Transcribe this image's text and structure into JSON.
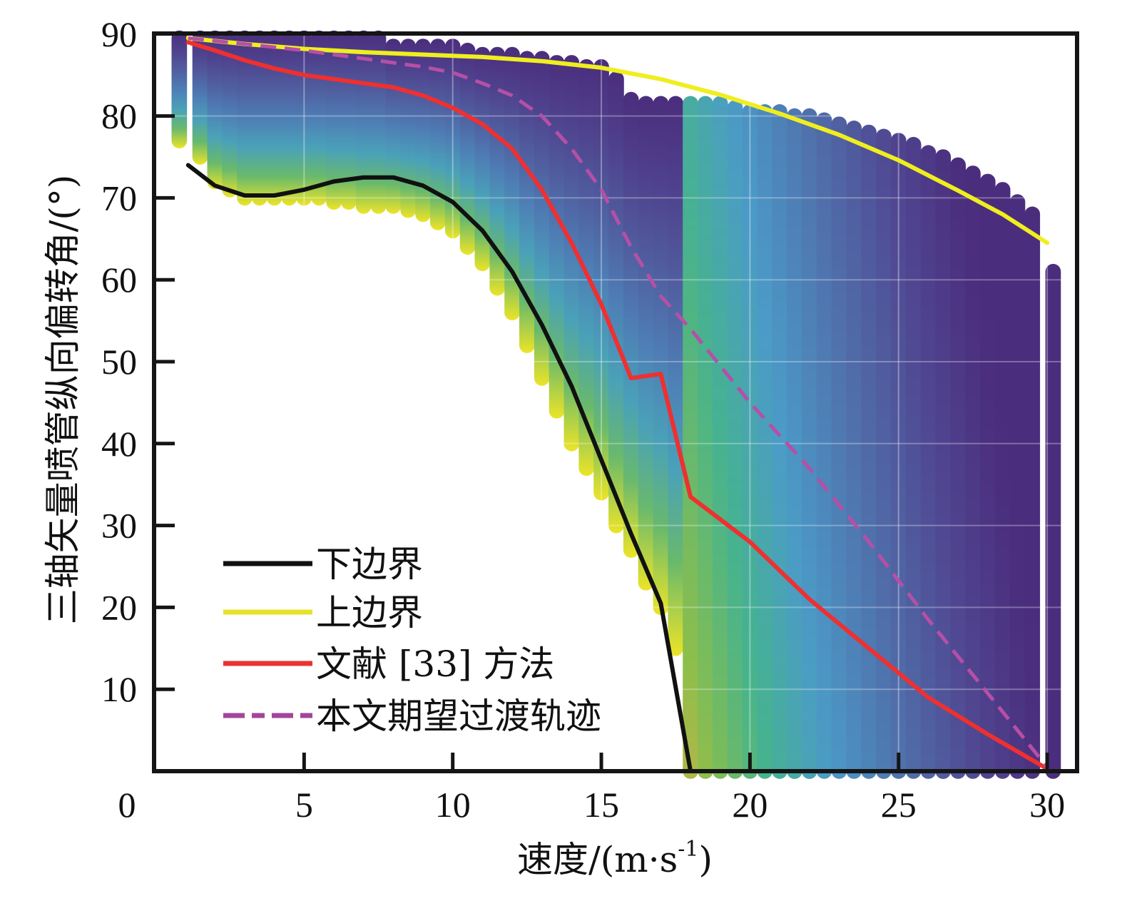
{
  "chart_data": {
    "type": "line",
    "title": "",
    "xlabel": "速度/(m·s⁻¹)",
    "xlabel_main": "速度/(m·s",
    "xlabel_sup": "-1",
    "xlabel_close": ")",
    "ylabel": "三轴矢量喷管纵向偏转角/(°)",
    "xlim": [
      0,
      31
    ],
    "ylim": [
      0,
      90
    ],
    "xticks": [
      0,
      5,
      10,
      15,
      20,
      25,
      30
    ],
    "xtick_labels": [
      "0",
      "5",
      "10",
      "15",
      "20",
      "25",
      "30"
    ],
    "yticks": [
      10,
      20,
      30,
      40,
      50,
      60,
      70,
      80,
      90
    ],
    "ytick_labels": [
      "10",
      "20",
      "30",
      "40",
      "50",
      "60",
      "70",
      "80",
      "90"
    ],
    "grid": true,
    "legend_position": "bottom-left",
    "feasible_region": {
      "description": "scatter of feasible points colored by colormap (viridis-like, yellow near lower bound to purple near upper bound)",
      "x": [
        0.8,
        1.5,
        2.0,
        2.5,
        3.0,
        3.5,
        4.0,
        4.5,
        5.0,
        5.5,
        6.0,
        6.5,
        7.0,
        7.5,
        8.0,
        8.5,
        9.0,
        9.5,
        10.0,
        10.5,
        11.0,
        11.5,
        12.0,
        12.5,
        13.0,
        13.5,
        14.0,
        14.5,
        15.0,
        15.5,
        16.0,
        16.5,
        17.0,
        17.5,
        18.0,
        18.5,
        19.0,
        19.5,
        20.0,
        20.5,
        21.0,
        21.5,
        22.0,
        22.5,
        23.0,
        23.5,
        24.0,
        24.5,
        25.0,
        25.5,
        26.0,
        26.5,
        27.0,
        27.5,
        28.0,
        28.5,
        29.0,
        29.5,
        30.2
      ],
      "top": [
        89.5,
        89.5,
        89.5,
        89.5,
        89.5,
        89.5,
        89.5,
        89.5,
        89.5,
        89.5,
        89.5,
        89.5,
        89.5,
        89.5,
        88.5,
        88.5,
        88.5,
        88.5,
        88.5,
        88,
        87.5,
        87.5,
        87.5,
        87,
        87,
        86.5,
        86.5,
        86,
        86,
        84.5,
        82,
        81.5,
        81.5,
        81.5,
        81.5,
        81.5,
        81.5,
        81,
        80.5,
        80.5,
        80.5,
        80,
        80,
        79.5,
        79,
        78.5,
        78,
        77.5,
        77,
        76.5,
        75.5,
        75,
        74,
        73,
        72,
        71,
        69.5,
        68,
        61
      ],
      "bottom": [
        77,
        75,
        72,
        71,
        70,
        70,
        70,
        70,
        70,
        70,
        69.5,
        69.5,
        69,
        69,
        69,
        68.5,
        68,
        67,
        66,
        64,
        62,
        59,
        56,
        52,
        48,
        44,
        40,
        37,
        34,
        30,
        27,
        23,
        20,
        15,
        0,
        0,
        0,
        0,
        0,
        0,
        0,
        0,
        0,
        0,
        0,
        0,
        0,
        0,
        0,
        0,
        0,
        0,
        0,
        0,
        0,
        0,
        0,
        0,
        0
      ]
    },
    "series": [
      {
        "name": "下边界",
        "color": "#111111",
        "style": "solid",
        "x": [
          1.1,
          2.0,
          3.0,
          4.0,
          5.0,
          6.0,
          7.0,
          8.0,
          9.0,
          10.0,
          11.0,
          12.0,
          13.0,
          14.0,
          15.0,
          16.0,
          17.0,
          18.0,
          30.0
        ],
        "y": [
          74,
          71.5,
          70.3,
          70.3,
          71,
          72,
          72.5,
          72.5,
          71.5,
          69.5,
          66,
          61,
          54.5,
          47,
          38,
          29,
          20.5,
          0,
          0
        ]
      },
      {
        "name": "上边界",
        "color": "#f0ee1f",
        "style": "solid",
        "x": [
          1.1,
          3.0,
          5.0,
          7.0,
          9.0,
          11.0,
          13.0,
          15.0,
          17.0,
          19.0,
          21.0,
          23.0,
          25.0,
          27.0,
          28.5,
          30.0
        ],
        "y": [
          89.5,
          88.8,
          88.2,
          87.8,
          87.5,
          87.2,
          86.7,
          85.9,
          84.5,
          82.6,
          80.3,
          77.7,
          74.6,
          70.9,
          68,
          64.5
        ]
      },
      {
        "name": "文献 [33] 方法",
        "color": "#ee3030",
        "style": "solid",
        "x": [
          1.1,
          2.0,
          3.0,
          4.0,
          5.0,
          6.0,
          7.0,
          8.0,
          9.0,
          10.0,
          11.0,
          12.0,
          13.0,
          14.0,
          15.0,
          16.0,
          17.0,
          18.0,
          20.0,
          22.0,
          24.0,
          26.0,
          28.0,
          30.0
        ],
        "y": [
          89,
          88,
          86.8,
          85.8,
          85,
          84.5,
          84,
          83.5,
          82.5,
          81,
          79,
          76,
          71,
          64.5,
          57,
          48,
          48.5,
          33.5,
          28,
          21,
          15,
          9,
          4.5,
          0.3
        ],
        "x_fix": [
          1.1,
          2.0,
          3.0,
          4.0,
          5.0,
          6.0,
          7.0,
          8.0,
          9.0,
          10.0,
          11.0,
          12.0,
          13.0,
          14.0,
          15.0,
          16.0,
          17.0,
          18.0,
          20.0,
          22.0,
          24.0,
          26.0,
          28.0,
          30.0
        ]
      },
      {
        "name": "本文期望过渡轨迹",
        "color": "#b64fa6",
        "style": "dashed",
        "x": [
          1.1,
          3.0,
          5.0,
          7.0,
          9.0,
          10.0,
          11.0,
          12.0,
          13.0,
          14.0,
          15.0,
          16.0,
          17.0,
          18.0,
          20.0,
          22.0,
          24.0,
          26.0,
          28.0,
          30.0
        ],
        "y": [
          89.5,
          88.8,
          88,
          87,
          86,
          85.3,
          84,
          82.5,
          80,
          76,
          71,
          64,
          58,
          54,
          45,
          37,
          28,
          18.5,
          9.5,
          0.5
        ]
      }
    ]
  },
  "legend": {
    "items": [
      {
        "label": "下边界",
        "color": "#111111",
        "dashed": false
      },
      {
        "label": "上边界",
        "color": "#e6e22a",
        "dashed": false
      },
      {
        "label": "文献 [33] 方法",
        "color": "#e83434",
        "dashed": false
      },
      {
        "label": "本文期望过渡轨迹",
        "color": "#a0479a",
        "dashed": true
      }
    ]
  }
}
